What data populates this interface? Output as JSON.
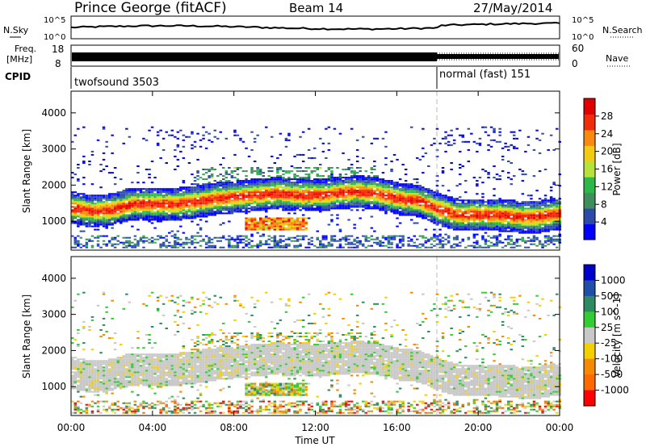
{
  "header": {
    "station": "Prince George (fitACF)",
    "beam": "Beam 14",
    "date": "27/May/2014"
  },
  "noise_panel": {
    "left_label": "N.Sky",
    "right_label": "N.Search",
    "left_ticks": [
      "10^5",
      "10^0"
    ],
    "right_ticks": [
      "10^5",
      "10^0"
    ]
  },
  "freq_panel": {
    "left_label_1": "Freq.",
    "left_label_2": "[MHz]",
    "right_label": "Nave",
    "left_ticks": [
      "18",
      "8"
    ],
    "right_ticks": [
      "60",
      "0"
    ]
  },
  "cpid": {
    "label": "CPID",
    "mode_1": "twofsound 3503",
    "mode_2": "normal (fast) 151",
    "mode_change_hour": 18
  },
  "colors": {
    "power": [
      "#0000ff",
      "#2c4ba8",
      "#3f8f5c",
      "#2fb84a",
      "#b7e23c",
      "#f2cc12",
      "#f88a10",
      "#f02c0a",
      "#e00000"
    ],
    "velocity": [
      "#0000cc",
      "#1f4fa8",
      "#2e8a60",
      "#33cc33",
      "#c8c8c8",
      "#f5d000",
      "#f58a00",
      "#ff6a00",
      "#ff0000"
    ]
  },
  "chart_data": [
    {
      "type": "heatmap",
      "quantity": "Power",
      "ylabel": "Slant Range [km]",
      "xlim": [
        "00:00",
        "24:00"
      ],
      "ylim": [
        200,
        4600
      ],
      "yticks": [
        "1000",
        "2000",
        "3000",
        "4000"
      ],
      "colorbar": {
        "label": "Power [dB]",
        "ticks": [
          "4",
          "8",
          "12",
          "16",
          "20",
          "24",
          "28"
        ],
        "range": [
          0,
          32
        ]
      },
      "features": [
        {
          "name": "main-band",
          "times_h": [
            0,
            1,
            2,
            3,
            4,
            5,
            6,
            7,
            8,
            9,
            10,
            11,
            12,
            13,
            14,
            15,
            16,
            17,
            18,
            19,
            20,
            21,
            22,
            23,
            24
          ],
          "range_km": [
            1350,
            1250,
            1300,
            1450,
            1450,
            1450,
            1500,
            1600,
            1650,
            1700,
            1750,
            1700,
            1700,
            1750,
            1800,
            1750,
            1600,
            1550,
            1300,
            1150,
            1150,
            1150,
            1100,
            1100,
            1200
          ],
          "peak_db": 28
        }
      ]
    },
    {
      "type": "heatmap",
      "quantity": "Velocity",
      "ylabel": "Slant Range [km]",
      "xlabel": "Time UT",
      "xlim": [
        "00:00",
        "24:00"
      ],
      "ylim": [
        200,
        4600
      ],
      "yticks": [
        "1000",
        "2000",
        "3000",
        "4000"
      ],
      "xticks": [
        "00:00",
        "04:00",
        "08:00",
        "12:00",
        "16:00",
        "20:00",
        "00:00"
      ],
      "colorbar": {
        "label": "Velocity [m s^-1]",
        "ticks": [
          "1000",
          "500",
          "100",
          "25",
          "-25",
          "-100",
          "-500",
          "-1000"
        ]
      }
    }
  ]
}
